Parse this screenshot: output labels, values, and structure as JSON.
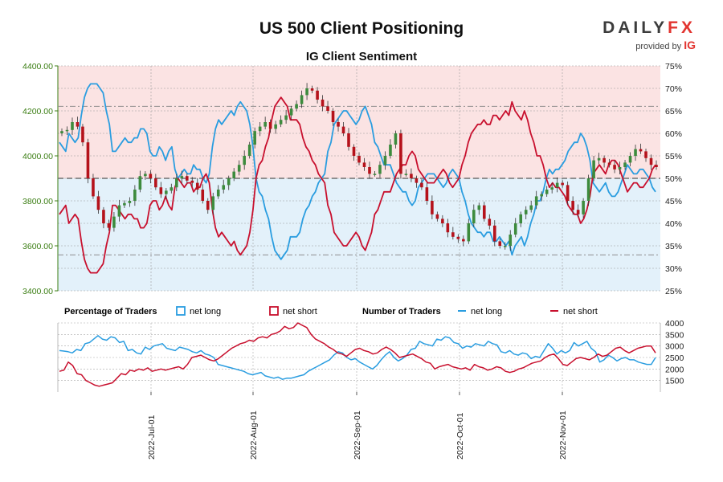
{
  "header": {
    "title": "US 500 Client Positioning",
    "subtitle": "IG Client Sentiment",
    "logo_text_a": "DAILY",
    "logo_text_b": "FX",
    "logo_provided": "provided by",
    "logo_ig": "IG"
  },
  "legend": {
    "pct_title": "Percentage of Traders",
    "pct_long": "net long",
    "pct_short": "net short",
    "num_title": "Number of Traders",
    "num_long": "net long",
    "num_short": "net short"
  },
  "colors": {
    "long": "#2a9de0",
    "short": "#c8102e",
    "up_candle": "#3d8b3d",
    "down_candle": "#b5121b",
    "long_zone": "#e3f1fa",
    "short_zone": "#fbe3e3",
    "axis_text_left": "#3a7d12"
  },
  "chart_data": [
    {
      "type": "candlestick",
      "title": "US 500 Client Positioning",
      "subtitle": "IG Client Sentiment",
      "ylim_left": [
        3400,
        4400
      ],
      "ylim_right": [
        25,
        75
      ],
      "left_ticks": [
        "3400.00",
        "3600.00",
        "3800.00",
        "4000.00",
        "4200.00",
        "4400.00"
      ],
      "right_ticks": [
        "25%",
        "30%",
        "35%",
        "40%",
        "45%",
        "50%",
        "55%",
        "60%",
        "65%",
        "70%",
        "75%"
      ],
      "x_tick_labels": [
        "2022-Jul-01",
        "2022-Aug-01",
        "2022-Sep-01",
        "2022-Oct-01",
        "2022-Nov-01"
      ],
      "grid": true,
      "reference_levels_pct": [
        66,
        50,
        33
      ],
      "price_close": [
        4110,
        4115,
        4150,
        4130,
        4060,
        3900,
        3820,
        3760,
        3700,
        3680,
        3730,
        3780,
        3790,
        3800,
        3850,
        3910,
        3920,
        3900,
        3860,
        3830,
        3845,
        3860,
        3900,
        3910,
        3890,
        3880,
        3850,
        3800,
        3760,
        3820,
        3850,
        3870,
        3900,
        3930,
        3960,
        4000,
        4050,
        4110,
        4130,
        4150,
        4120,
        4140,
        4160,
        4180,
        4210,
        4230,
        4270,
        4300,
        4290,
        4250,
        4220,
        4200,
        4150,
        4130,
        4100,
        4040,
        4000,
        3970,
        3950,
        3920,
        3920,
        3960,
        4000,
        4050,
        4100,
        3920,
        3920,
        3900,
        3880,
        3860,
        3800,
        3740,
        3720,
        3700,
        3660,
        3640,
        3630,
        3620,
        3700,
        3760,
        3780,
        3720,
        3690,
        3620,
        3600,
        3600,
        3650,
        3700,
        3740,
        3760,
        3780,
        3820,
        3830,
        3850,
        3860,
        3880,
        3870,
        3800,
        3760,
        3740,
        3800,
        3900,
        3980,
        3990,
        3970,
        3960,
        3940,
        3950,
        3970,
        4000,
        4030,
        4020,
        3990,
        3960,
        3950
      ],
      "pct_net_long": [
        58,
        57,
        56,
        60,
        59,
        58,
        59,
        64,
        68,
        70,
        71,
        71,
        71,
        70,
        69,
        65,
        62,
        56,
        56,
        57,
        58,
        59,
        58,
        58,
        59,
        59,
        61,
        61,
        60,
        56,
        55,
        55,
        57,
        56,
        54,
        56,
        57,
        52,
        50,
        51,
        52,
        51,
        51,
        53,
        52,
        52,
        50,
        49,
        51,
        57,
        61,
        63,
        62,
        63,
        64,
        65,
        64,
        66,
        67,
        66,
        65,
        62,
        57,
        50,
        47,
        46,
        43,
        41,
        37,
        34,
        33,
        32,
        33,
        34,
        37,
        37,
        37,
        38,
        41,
        43,
        44,
        46,
        47,
        49,
        50,
        51,
        56,
        58,
        62,
        63,
        64,
        65,
        65,
        64,
        63,
        62,
        63,
        65,
        66,
        64,
        62,
        58,
        57,
        55,
        53,
        53,
        53,
        51,
        49,
        48,
        47,
        47,
        45,
        44,
        45,
        48,
        49,
        50,
        51,
        51,
        51,
        50,
        49,
        48,
        49,
        51,
        52,
        51,
        50,
        47,
        45,
        42,
        40,
        39,
        38,
        38,
        37,
        38,
        38,
        36,
        36,
        37,
        36,
        35,
        36,
        33,
        35,
        36,
        37,
        35,
        37,
        40,
        42,
        45,
        45,
        47,
        50,
        52,
        51,
        52,
        52,
        53,
        54,
        56,
        57,
        58,
        58,
        60,
        59,
        57,
        54,
        49,
        48,
        47,
        48,
        49,
        47,
        46,
        46,
        47,
        49,
        51,
        53,
        52,
        51,
        51,
        52,
        52,
        51,
        50,
        48,
        47
      ],
      "pct_net_short": [
        42,
        43,
        44,
        40,
        41,
        42,
        41,
        36,
        32,
        30,
        29,
        29,
        29,
        30,
        31,
        35,
        38,
        44,
        44,
        43,
        42,
        41,
        42,
        42,
        41,
        41,
        39,
        39,
        40,
        44,
        45,
        45,
        43,
        44,
        46,
        44,
        43,
        48,
        50,
        49,
        48,
        49,
        49,
        47,
        48,
        48,
        50,
        51,
        49,
        43,
        39,
        37,
        38,
        37,
        36,
        35,
        36,
        34,
        33,
        34,
        35,
        38,
        43,
        50,
        53,
        54,
        57,
        59,
        63,
        66,
        67,
        68,
        67,
        66,
        63,
        63,
        63,
        62,
        59,
        57,
        56,
        54,
        53,
        51,
        50,
        49,
        44,
        42,
        38,
        37,
        36,
        35,
        35,
        36,
        37,
        38,
        37,
        35,
        34,
        36,
        38,
        42,
        43,
        45,
        47,
        47,
        47,
        49,
        51,
        52,
        53,
        53,
        55,
        56,
        55,
        52,
        51,
        50,
        49,
        49,
        49,
        50,
        51,
        52,
        51,
        49,
        48,
        49,
        50,
        53,
        55,
        58,
        60,
        61,
        62,
        62,
        63,
        62,
        62,
        64,
        64,
        63,
        64,
        65,
        64,
        67,
        65,
        64,
        63,
        65,
        63,
        60,
        58,
        55,
        55,
        53,
        50,
        48,
        49,
        48,
        48,
        47,
        46,
        44,
        43,
        42,
        42,
        40,
        41,
        43,
        46,
        51,
        52,
        53,
        52,
        51,
        53,
        54,
        54,
        53,
        51,
        49,
        47,
        48,
        49,
        49,
        48,
        48,
        49,
        50,
        52,
        53
      ],
      "up_color": "#3d8b3d",
      "down_color": "#b5121b"
    },
    {
      "type": "line",
      "ylim": [
        1000,
        4000
      ],
      "y_tick_labels": [
        "1500",
        "2000",
        "2500",
        "3000",
        "3500",
        "4000"
      ],
      "grid": true,
      "series": [
        {
          "name": "net long",
          "color": "#2a9de0",
          "values": [
            2800,
            2780,
            2750,
            2700,
            2850,
            2800,
            3100,
            3150,
            3300,
            3450,
            3300,
            3250,
            3400,
            3350,
            3150,
            3200,
            2800,
            2850,
            2700,
            2650,
            2950,
            2850,
            3000,
            3050,
            3100,
            2900,
            2850,
            2800,
            2950,
            2900,
            2850,
            2750,
            2700,
            2800,
            2650,
            2600,
            2500,
            2200,
            2150,
            2100,
            2050,
            2000,
            1950,
            1900,
            1800,
            1750,
            1800,
            1850,
            1700,
            1650,
            1600,
            1650,
            1550,
            1600,
            1600,
            1650,
            1700,
            1750,
            1900,
            2000,
            2100,
            2200,
            2300,
            2400,
            2600,
            2750,
            2700,
            2500,
            2400,
            2450,
            2300,
            2200,
            2100,
            2000,
            2150,
            2400,
            2600,
            2750,
            2500,
            2350,
            2450,
            2600,
            2850,
            2900,
            3200,
            3100,
            3050,
            3000,
            3300,
            3250,
            3400,
            3350,
            3150,
            3100,
            2900,
            3000,
            2950,
            3100,
            3050,
            3000,
            3200,
            3100,
            3050,
            2750,
            2700,
            2800,
            2650,
            2600,
            2700,
            2650,
            2450,
            2550,
            2500,
            2800,
            3100,
            2900,
            2650,
            2800,
            2700,
            2800,
            3150,
            3000,
            3100,
            3200,
            2900,
            2750,
            2300,
            2400,
            2600,
            2500,
            2350,
            2450,
            2500,
            2400,
            2400,
            2300,
            2250,
            2200,
            2200,
            2500
          ]
        },
        {
          "name": "net short",
          "color": "#c8102e",
          "values": [
            1900,
            1950,
            2300,
            2150,
            1800,
            1750,
            1500,
            1400,
            1300,
            1250,
            1300,
            1350,
            1400,
            1600,
            1800,
            1750,
            1950,
            1900,
            2000,
            1950,
            2050,
            1900,
            1950,
            2000,
            1950,
            2000,
            2050,
            2100,
            2000,
            2200,
            2500,
            2550,
            2600,
            2500,
            2400,
            2350,
            2450,
            2600,
            2750,
            2900,
            3000,
            3100,
            3150,
            3250,
            3200,
            3350,
            3400,
            3350,
            3500,
            3550,
            3650,
            3850,
            3750,
            3800,
            4000,
            3900,
            3800,
            3500,
            3300,
            3200,
            3100,
            2950,
            2850,
            2700,
            2650,
            2550,
            2700,
            2850,
            2900,
            2800,
            2750,
            2650,
            2700,
            2850,
            2950,
            2850,
            2700,
            2500,
            2550,
            2600,
            2650,
            2550,
            2450,
            2300,
            2250,
            2000,
            2100,
            2150,
            2200,
            2100,
            2050,
            2000,
            2050,
            1950,
            2200,
            2100,
            2050,
            1950,
            2000,
            2100,
            2050,
            1900,
            1850,
            1900,
            2000,
            2050,
            2150,
            2250,
            2300,
            2350,
            2500,
            2600,
            2650,
            2450,
            2200,
            2150,
            2300,
            2450,
            2500,
            2450,
            2400,
            2500,
            2650,
            2550,
            2600,
            2750,
            2900,
            2950,
            2800,
            2700,
            2800,
            2900,
            2950,
            3000,
            3000,
            2700
          ]
        }
      ]
    }
  ]
}
